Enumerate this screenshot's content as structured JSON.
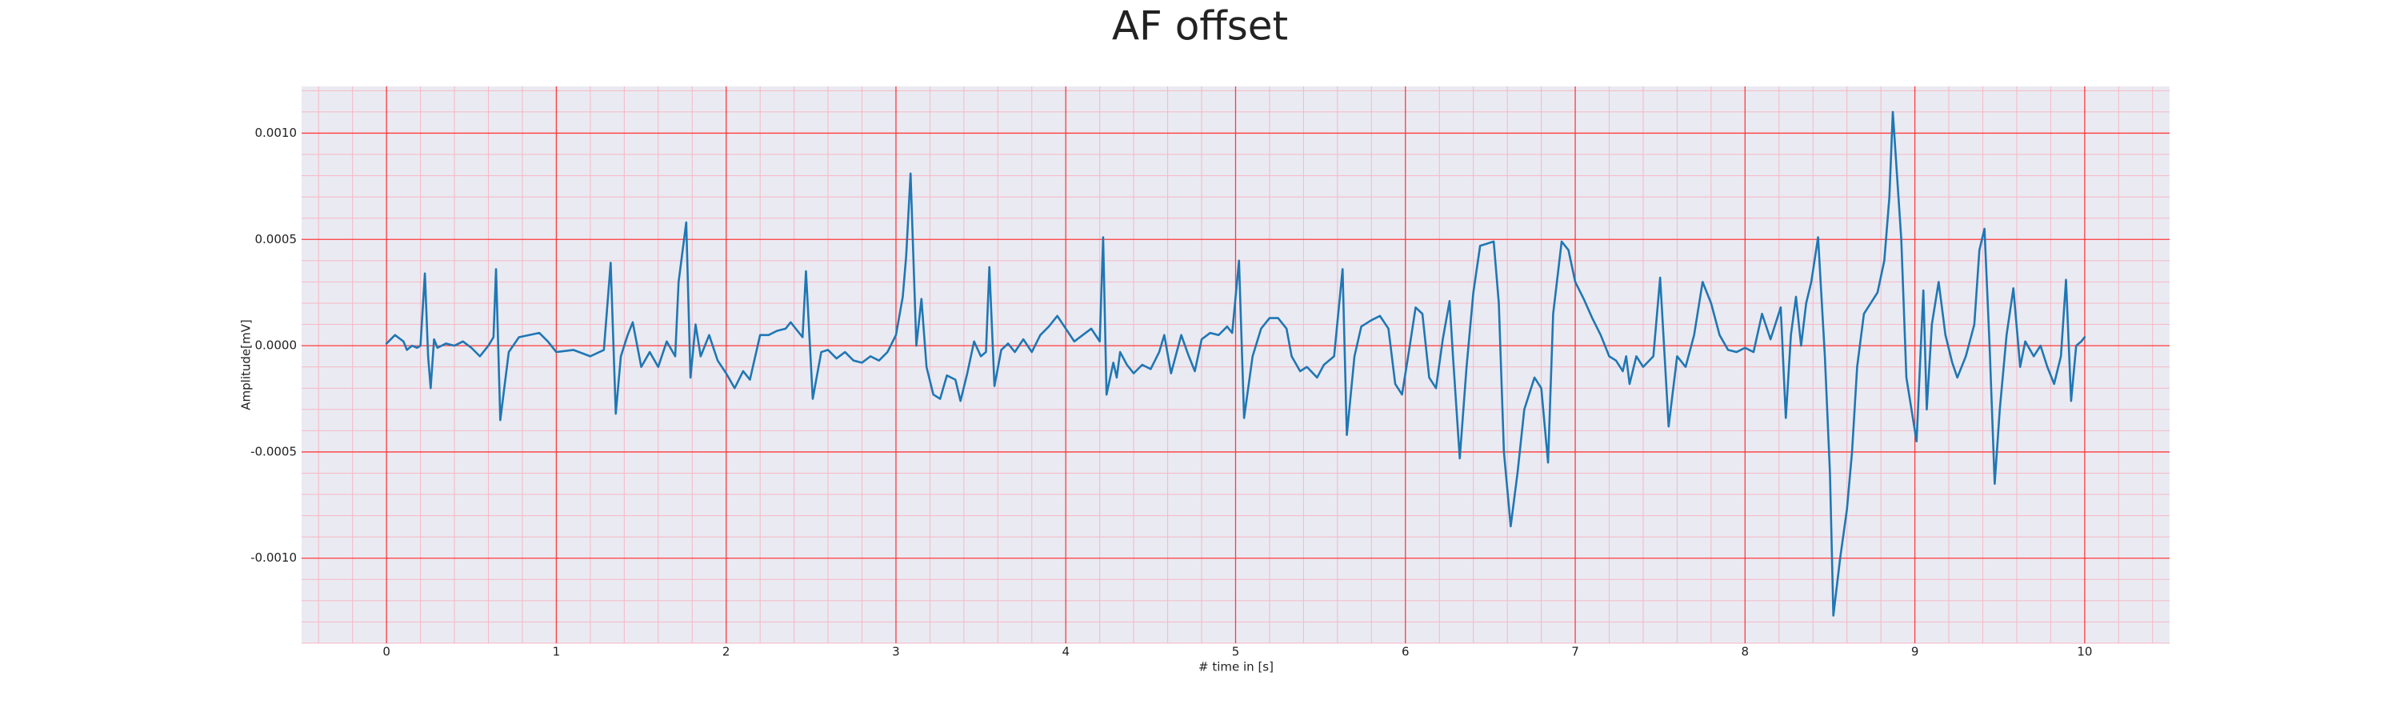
{
  "chart_data": {
    "type": "line",
    "title": "AF offset",
    "xlabel": "# time in [s]",
    "ylabel": "Amplitude[mV]",
    "xlim": [
      -0.5,
      10.5
    ],
    "ylim": [
      -0.0014,
      0.00122
    ],
    "xticks": [
      0,
      1,
      2,
      3,
      4,
      5,
      6,
      7,
      8,
      9,
      10
    ],
    "yticks": [
      {
        "value": -0.001,
        "label": "-0.0010"
      },
      {
        "value": -0.0005,
        "label": "-0.0005"
      },
      {
        "value": 0,
        "label": "0.0000"
      },
      {
        "value": 0.0005,
        "label": "0.0005"
      },
      {
        "value": 0.001,
        "label": "0.0010"
      }
    ],
    "grid": true,
    "grid_color": "#ff3b3b",
    "minor_grid": true,
    "minor_grid_color": "#f5b8c4",
    "minor_grid_divisions": 5,
    "background": "#eaeaf2",
    "series": [
      {
        "color": "#1f77b4",
        "x": [
          0,
          0.05,
          0.1,
          0.12,
          0.15,
          0.18,
          0.2,
          0.226,
          0.245,
          0.26,
          0.28,
          0.3,
          0.35,
          0.4,
          0.45,
          0.5,
          0.55,
          0.6,
          0.63,
          0.645,
          0.67,
          0.72,
          0.78,
          0.9,
          0.95,
          1.0,
          1.1,
          1.2,
          1.28,
          1.32,
          1.35,
          1.38,
          1.42,
          1.45,
          1.5,
          1.55,
          1.6,
          1.65,
          1.7,
          1.72,
          1.765,
          1.79,
          1.82,
          1.85,
          1.9,
          1.95,
          2.0,
          2.05,
          2.1,
          2.14,
          2.2,
          2.25,
          2.3,
          2.35,
          2.38,
          2.42,
          2.45,
          2.47,
          2.51,
          2.56,
          2.6,
          2.65,
          2.7,
          2.75,
          2.8,
          2.85,
          2.9,
          2.95,
          3.0,
          3.04,
          3.06,
          3.086,
          3.12,
          3.15,
          3.18,
          3.22,
          3.26,
          3.3,
          3.35,
          3.38,
          3.42,
          3.46,
          3.5,
          3.53,
          3.55,
          3.58,
          3.62,
          3.66,
          3.7,
          3.75,
          3.8,
          3.85,
          3.9,
          3.95,
          4.0,
          4.05,
          4.1,
          4.15,
          4.2,
          4.22,
          4.24,
          4.28,
          4.3,
          4.32,
          4.36,
          4.4,
          4.45,
          4.5,
          4.55,
          4.58,
          4.62,
          4.68,
          4.72,
          4.76,
          4.8,
          4.85,
          4.9,
          4.95,
          4.98,
          5.02,
          5.05,
          5.1,
          5.15,
          5.2,
          5.25,
          5.3,
          5.33,
          5.38,
          5.42,
          5.48,
          5.52,
          5.58,
          5.63,
          5.655,
          5.7,
          5.74,
          5.8,
          5.85,
          5.9,
          5.94,
          5.98,
          6.02,
          6.06,
          6.1,
          6.14,
          6.18,
          6.22,
          6.26,
          6.28,
          6.32,
          6.36,
          6.4,
          6.44,
          6.48,
          6.52,
          6.55,
          6.58,
          6.62,
          6.66,
          6.7,
          6.76,
          6.8,
          6.84,
          6.87,
          6.92,
          6.96,
          7.0,
          7.05,
          7.1,
          7.15,
          7.2,
          7.24,
          7.28,
          7.3,
          7.32,
          7.36,
          7.4,
          7.46,
          7.5,
          7.55,
          7.6,
          7.65,
          7.7,
          7.75,
          7.8,
          7.85,
          7.9,
          7.95,
          8.0,
          8.05,
          8.1,
          8.15,
          8.21,
          8.24,
          8.27,
          8.3,
          8.33,
          8.36,
          8.39,
          8.43,
          8.47,
          8.5,
          8.52,
          8.56,
          8.6,
          8.63,
          8.66,
          8.7,
          8.74,
          8.78,
          8.82,
          8.85,
          8.87,
          8.92,
          8.95,
          8.98,
          9.01,
          9.05,
          9.07,
          9.1,
          9.14,
          9.18,
          9.22,
          9.25,
          9.3,
          9.35,
          9.38,
          9.41,
          9.44,
          9.47,
          9.5,
          9.54,
          9.58,
          9.62,
          9.65,
          9.7,
          9.74,
          9.78,
          9.82,
          9.86,
          9.89,
          9.92,
          9.95,
          9.98,
          10.0
        ],
        "values": [
          1e-05,
          5e-05,
          2e-05,
          -2e-05,
          0,
          -1e-05,
          0,
          0.00034,
          -5e-05,
          -0.0002,
          3e-05,
          -1e-05,
          1e-05,
          0,
          2e-05,
          -1e-05,
          -5e-05,
          0,
          4e-05,
          0.00036,
          -0.00035,
          -3e-05,
          4e-05,
          6e-05,
          2e-05,
          -3e-05,
          -2e-05,
          -5e-05,
          -2e-05,
          0.00039,
          -0.00032,
          -5e-05,
          5e-05,
          0.00011,
          -0.0001,
          -3e-05,
          -0.0001,
          2e-05,
          -5e-05,
          0.0003,
          0.00058,
          -0.00015,
          0.0001,
          -5e-05,
          5e-05,
          -7e-05,
          -0.00013,
          -0.0002,
          -0.00012,
          -0.00016,
          5e-05,
          5e-05,
          7e-05,
          8e-05,
          0.00011,
          7e-05,
          4e-05,
          0.00035,
          -0.00025,
          -3e-05,
          -2e-05,
          -6e-05,
          -3e-05,
          -7e-05,
          -8e-05,
          -5e-05,
          -7e-05,
          -3e-05,
          5e-05,
          0.00023,
          0.00042,
          0.00081,
          0,
          0.00022,
          -0.0001,
          -0.00023,
          -0.00025,
          -0.00014,
          -0.00016,
          -0.00026,
          -0.00013,
          2e-05,
          -5e-05,
          -3e-05,
          0.00037,
          -0.00019,
          -2e-05,
          1e-05,
          -3e-05,
          3e-05,
          -3e-05,
          5e-05,
          9e-05,
          0.00014,
          8e-05,
          2e-05,
          5e-05,
          8e-05,
          2e-05,
          0.00051,
          -0.00023,
          -8e-05,
          -0.00015,
          -3e-05,
          -9e-05,
          -0.00013,
          -9e-05,
          -0.00011,
          -3e-05,
          5e-05,
          -0.00013,
          5e-05,
          -4e-05,
          -0.00012,
          3e-05,
          6e-05,
          5e-05,
          9e-05,
          6e-05,
          0.0004,
          -0.00034,
          -5e-05,
          8e-05,
          0.00013,
          0.00013,
          8e-05,
          -5e-05,
          -0.00012,
          -0.0001,
          -0.00015,
          -9e-05,
          -5e-05,
          0.00036,
          -0.00042,
          -5e-05,
          9e-05,
          0.00012,
          0.00014,
          8e-05,
          -0.00018,
          -0.00023,
          -3e-05,
          0.00018,
          0.00015,
          -0.00015,
          -0.0002,
          3e-05,
          0.00021,
          -5e-05,
          -0.00053,
          -0.0001,
          0.00025,
          0.00047,
          0.00048,
          0.00049,
          0.0002,
          -0.0005,
          -0.00085,
          -0.0006,
          -0.0003,
          -0.00015,
          -0.0002,
          -0.00055,
          0.00015,
          0.00049,
          0.00045,
          0.0003,
          0.00022,
          0.00013,
          5e-05,
          -5e-05,
          -7e-05,
          -0.00012,
          -5e-05,
          -0.00018,
          -5e-05,
          -0.0001,
          -5e-05,
          0.00032,
          -0.00038,
          -5e-05,
          -0.0001,
          5e-05,
          0.0003,
          0.0002,
          5e-05,
          -2e-05,
          -3e-05,
          -1e-05,
          -3e-05,
          0.00015,
          3e-05,
          0.00018,
          -0.00034,
          5e-05,
          0.00023,
          0,
          0.0002,
          0.0003,
          0.00051,
          -5e-05,
          -0.0006,
          -0.00127,
          -0.001,
          -0.00077,
          -0.0005,
          -0.0001,
          0.00015,
          0.0002,
          0.00025,
          0.0004,
          0.0007,
          0.0011,
          0.0005,
          -0.00015,
          -0.0003,
          -0.00045,
          0.00026,
          -0.0003,
          0.0001,
          0.0003,
          5e-05,
          -8e-05,
          -0.00015,
          -5e-05,
          0.0001,
          0.00045,
          0.00055,
          0,
          -0.00065,
          -0.0003,
          5e-05,
          0.00027,
          -0.0001,
          2e-05,
          -5e-05,
          0,
          -0.0001,
          -0.00018,
          -5e-05,
          0.00031,
          -0.00026,
          0,
          2e-05,
          4e-05
        ]
      }
    ]
  }
}
